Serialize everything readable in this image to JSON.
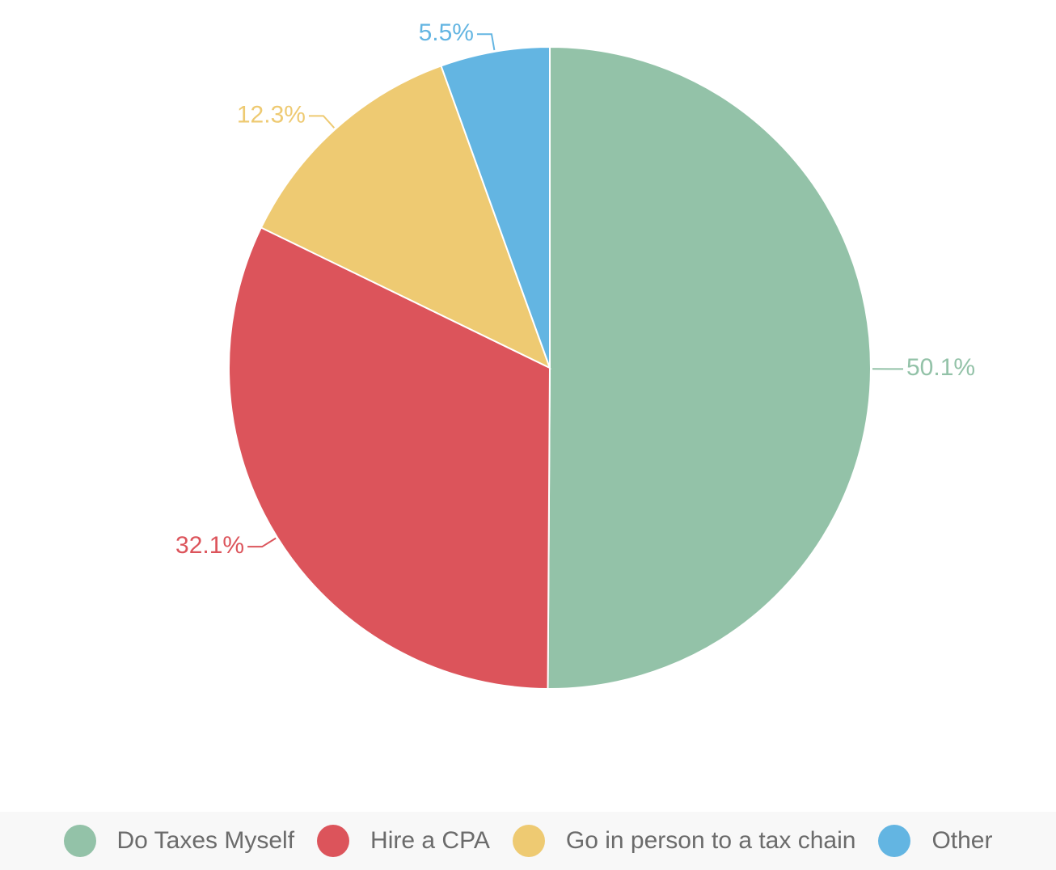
{
  "chart_data": {
    "type": "pie",
    "categories": [
      "Do Taxes Myself",
      "Hire a CPA",
      "Go in person to a tax chain",
      "Other"
    ],
    "values": [
      50.1,
      32.1,
      12.3,
      5.5
    ],
    "value_labels": [
      "50.1%",
      "32.1%",
      "12.3%",
      "5.5%"
    ],
    "colors": [
      "#93c2a8",
      "#dc545b",
      "#eeca72",
      "#63b5e2"
    ],
    "legend": "bottom"
  }
}
